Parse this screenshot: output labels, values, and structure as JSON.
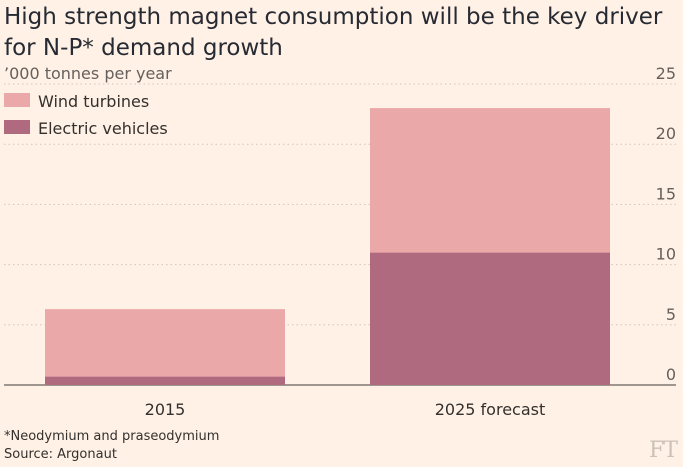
{
  "title": "High strength magnet consumption will be the key driver for N-P* demand growth",
  "footnote": "*Neodymium and praseodymium",
  "source": "Source: Argonaut",
  "logo": "FT",
  "chart_data": {
    "type": "bar",
    "stacked": true,
    "categories": [
      "2015",
      "2025 forecast"
    ],
    "series": [
      {
        "name": "Electric vehicles",
        "values": [
          0.7,
          11
        ],
        "color": "#B06A80"
      },
      {
        "name": "Wind turbines",
        "values": [
          5.6,
          12
        ],
        "color": "#EBA8A8"
      }
    ],
    "ylabel": "’000 tonnes per year",
    "ylim": [
      0,
      25
    ],
    "yticks": [
      0,
      5,
      10,
      15,
      20,
      25
    ],
    "grid": true,
    "legend": "top-left"
  }
}
